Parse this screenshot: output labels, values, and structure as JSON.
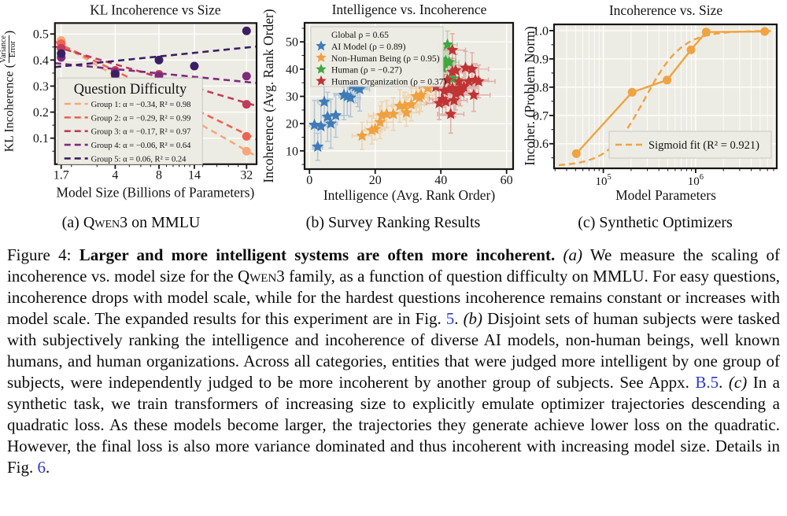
{
  "colors": {
    "plot_bg": "#EDECE4",
    "grid": "#ffffff",
    "spine": "#151515",
    "link": "#2b3acc"
  },
  "figure": {
    "subcaptions": [
      {
        "prefix": "(a) ",
        "smallcaps": "Qwen3",
        "suffix": " on MMLU"
      },
      {
        "prefix": "(b) ",
        "smallcaps": "",
        "suffix": "Survey Ranking Results"
      },
      {
        "prefix": "(c) ",
        "smallcaps": "",
        "suffix": "Synthetic Optimizers"
      }
    ]
  },
  "caption": {
    "segments": [
      {
        "text": "Figure 4: ",
        "style": "normal"
      },
      {
        "text": "Larger and more intelligent systems are often more incoherent.",
        "style": "bold"
      },
      {
        "text": " ",
        "style": "normal"
      },
      {
        "text": "(a)",
        "style": "italic"
      },
      {
        "text": " We measure the scaling of incoherence vs. model size for the ",
        "style": "normal"
      },
      {
        "text": "Qwen3",
        "style": "smallcaps"
      },
      {
        "text": " family, as a function of question difficulty on MMLU. For easy questions, incoherence drops with model scale, while for the hardest questions incoherence remains constant or increases with model scale. The expanded results for this experiment are in Fig. ",
        "style": "normal"
      },
      {
        "text": "5",
        "style": "link"
      },
      {
        "text": ". ",
        "style": "normal"
      },
      {
        "text": "(b)",
        "style": "italic"
      },
      {
        "text": " Disjoint sets of human subjects were tasked with subjectively ranking the intelligence and incoherence of diverse AI models, non-human beings, well known humans, and human organizations. Across all categories, entities that were judged more intelligent by one group of subjects, were independently judged to be more incoherent by another group of subjects. See Appx. ",
        "style": "normal"
      },
      {
        "text": "B.5",
        "style": "link"
      },
      {
        "text": ". ",
        "style": "normal"
      },
      {
        "text": "(c)",
        "style": "italic"
      },
      {
        "text": " In a synthetic task, we train transformers of increasing size to explicitly emulate optimizer trajectories descending a quadratic loss. As these models become larger, the trajectories they generate achieve lower loss on the quadratic. However, the final loss is also more variance dominated and thus incoherent with increasing model size. Details in Fig. ",
        "style": "normal"
      },
      {
        "text": "6",
        "style": "link"
      },
      {
        "text": ".",
        "style": "normal"
      }
    ]
  },
  "chart_data": [
    {
      "id": "kl-incoherence-vs-size",
      "type": "scatter",
      "title": "KL Incoherence vs Size",
      "xlabel": "Model Size (Billions of Parameters)",
      "ylabel_parts": {
        "pre": "KL Incoherence (",
        "numerator": "Variance",
        "denominator": "Error",
        "post": ")"
      },
      "x_scale": "log",
      "xlim": [
        1.54,
        37.5
      ],
      "x_ticks": [
        1.7,
        4,
        8,
        14,
        32
      ],
      "x_minor_ticks": [
        2,
        3,
        5,
        6,
        7,
        9,
        10,
        11,
        12,
        13,
        16,
        20,
        24,
        28
      ],
      "ylim": [
        0.0,
        0.542
      ],
      "y_ticks": [
        0.1,
        0.2,
        0.3,
        0.4,
        0.5
      ],
      "legend_title": "Question Difficulty",
      "series": [
        {
          "label": "Group 1: α = −0.34, R² = 0.98",
          "color": "#F6A77B",
          "points": [
            [
              1.7,
              0.475
            ],
            [
              4,
              0.332
            ],
            [
              8,
              0.245
            ],
            [
              14,
              0.15
            ],
            [
              32,
              0.05
            ]
          ],
          "trend_y": [
            0.472,
            0.03
          ]
        },
        {
          "label": "Group 2: α = −0.29, R² = 0.99",
          "color": "#EE6352",
          "points": [
            [
              1.7,
              0.463
            ],
            [
              4,
              0.338
            ],
            [
              8,
              0.28
            ],
            [
              14,
              0.19
            ],
            [
              32,
              0.107
            ]
          ],
          "trend_y": [
            0.47,
            0.096
          ]
        },
        {
          "label": "Group 3: α = −0.17, R² = 0.97",
          "color": "#C23B5B",
          "points": [
            [
              1.7,
              0.445
            ],
            [
              4,
              0.36
            ],
            [
              8,
              0.345
            ],
            [
              14,
              0.3
            ],
            [
              32,
              0.23
            ]
          ],
          "trend_y": [
            0.452,
            0.224
          ]
        },
        {
          "label": "Group 4: α = −0.06, R² = 0.64",
          "color": "#7E2A7E",
          "points": [
            [
              1.7,
              0.41
            ],
            [
              4,
              0.352
            ],
            [
              8,
              0.338
            ],
            [
              14,
              0.32
            ],
            [
              32,
              0.338
            ]
          ],
          "trend_y": [
            0.388,
            0.312
          ]
        },
        {
          "label": "Group 5: α = 0.06, R² = 0.24",
          "color": "#3B1F63",
          "points": [
            [
              1.7,
              0.425
            ],
            [
              4,
              0.345
            ],
            [
              8,
              0.4
            ],
            [
              14,
              0.377
            ],
            [
              32,
              0.512
            ]
          ],
          "trend_y": [
            0.373,
            0.452
          ]
        }
      ]
    },
    {
      "id": "intelligence-vs-incoherence",
      "type": "scatter",
      "title": "Intelligence vs. Incoherence",
      "xlabel": "Intelligence (Avg. Rank Order)",
      "ylabel": "Incoherence (Avg. Rank Order)",
      "xlim": [
        -1.5,
        62
      ],
      "x_ticks": [
        0,
        20,
        40,
        60
      ],
      "ylim": [
        3.3,
        57
      ],
      "y_ticks": [
        10,
        20,
        30,
        40,
        50
      ],
      "legend_global": "Global ρ = 0.65",
      "series": [
        {
          "label": "AI Model (ρ = 0.89)",
          "color": "#3E7BB8",
          "points": [
            [
              1.5,
              19.5,
              1.5,
              9
            ],
            [
              2.5,
              11.5,
              1.5,
              5
            ],
            [
              3.5,
              19,
              2,
              8
            ],
            [
              4.5,
              28,
              2,
              8
            ],
            [
              5.5,
              22.5,
              2,
              9
            ],
            [
              6.5,
              20,
              2,
              9
            ],
            [
              8,
              23,
              2.5,
              8
            ],
            [
              10.5,
              30.5,
              3,
              9
            ],
            [
              11.5,
              30,
              2.5,
              7
            ],
            [
              12.5,
              29.5,
              3,
              7
            ],
            [
              13,
              34,
              3,
              6
            ],
            [
              14,
              33.6,
              2.5,
              6
            ],
            [
              14.7,
              33.2,
              3,
              7
            ],
            [
              15.3,
              32.6,
              3,
              8
            ]
          ]
        },
        {
          "label": "Non-Human Being (ρ = 0.95)",
          "color": "#F0A13F",
          "points": [
            [
              16,
              15.5,
              3,
              5
            ],
            [
              19,
              17.5,
              3,
              5
            ],
            [
              20,
              18,
              3,
              4
            ],
            [
              21.5,
              20.5,
              4,
              6
            ],
            [
              22,
              23,
              4,
              5
            ],
            [
              23.5,
              23.5,
              4,
              5
            ],
            [
              25.5,
              23.5,
              4,
              6
            ],
            [
              27.5,
              26.5,
              4,
              6
            ],
            [
              29,
              26.5,
              4,
              5
            ],
            [
              29.5,
              24,
              4,
              5
            ],
            [
              31,
              27,
              4,
              6
            ],
            [
              32.5,
              30,
              4,
              6
            ],
            [
              33.5,
              29.5,
              4,
              5
            ],
            [
              34,
              30.5,
              4,
              6
            ],
            [
              36,
              33,
              5,
              6
            ]
          ]
        },
        {
          "label": "Human (ρ = −0.27)",
          "color": "#41A63F",
          "points": [
            [
              42,
              49,
              3,
              5
            ],
            [
              39.5,
              43.5,
              4,
              6
            ],
            [
              40.5,
              43,
              4,
              5
            ],
            [
              41.5,
              43,
              3,
              5
            ],
            [
              40,
              42,
              4,
              6
            ],
            [
              41,
              42.3,
              3,
              5
            ],
            [
              42.5,
              42.5,
              3,
              6
            ],
            [
              40.5,
              40.5,
              4,
              6
            ],
            [
              43.5,
              36.5,
              3,
              5
            ]
          ]
        },
        {
          "label": "Human Organization (ρ = 0.37)",
          "color": "#BF3434",
          "points": [
            [
              43.5,
              47,
              4,
              6
            ],
            [
              47.5,
              40.5,
              4,
              6
            ],
            [
              49.5,
              40,
              5,
              6
            ],
            [
              44.5,
              39.5,
              4,
              6
            ],
            [
              43.5,
              39,
              4,
              5
            ],
            [
              42,
              36,
              5,
              7
            ],
            [
              45.5,
              35.5,
              4,
              6
            ],
            [
              48.5,
              35.5,
              4,
              5
            ],
            [
              50.5,
              36,
              4,
              6
            ],
            [
              51.5,
              35.5,
              5,
              6
            ],
            [
              38.5,
              33.5,
              5,
              6
            ],
            [
              43.5,
              33,
              4,
              5
            ],
            [
              45.5,
              33,
              4,
              6
            ],
            [
              47,
              33.5,
              4,
              5
            ],
            [
              41,
              32,
              4,
              6
            ],
            [
              42.5,
              32.5,
              4,
              5
            ],
            [
              44.5,
              31,
              4,
              6
            ],
            [
              46,
              31.5,
              4,
              5
            ],
            [
              50,
              30.5,
              5,
              6
            ],
            [
              40.5,
              29,
              4,
              6
            ],
            [
              41.5,
              28,
              4,
              5
            ],
            [
              39.5,
              27.5,
              4,
              6
            ],
            [
              44,
              28.5,
              4,
              6
            ],
            [
              43,
              23.5,
              4,
              7
            ]
          ]
        }
      ]
    },
    {
      "id": "incoherence-vs-size",
      "type": "line",
      "title": "Incoherence vs. Size",
      "xlabel": "Model Parameters",
      "ylabel": "Incoher. (Problem Norm)",
      "x_scale": "log",
      "xlim_log10": [
        4.466,
        6.879
      ],
      "x_major_ticks_log10": [
        5,
        6
      ],
      "ylim": [
        0.513,
        1.022
      ],
      "y_ticks": [
        0.6,
        0.7,
        0.8,
        0.9,
        1.0
      ],
      "color": "#F0A341",
      "points": [
        [
          51000,
          0.565
        ],
        [
          205000,
          0.782
        ],
        [
          490000,
          0.825
        ],
        [
          890000,
          0.932
        ],
        [
          1300000,
          0.995
        ],
        [
          5600000,
          0.997
        ]
      ],
      "sigmoid": {
        "L": 0.52,
        "U": 0.999,
        "t0": 5.45,
        "k": 5
      },
      "legend": "Sigmoid fit (R² = 0.921)"
    }
  ]
}
